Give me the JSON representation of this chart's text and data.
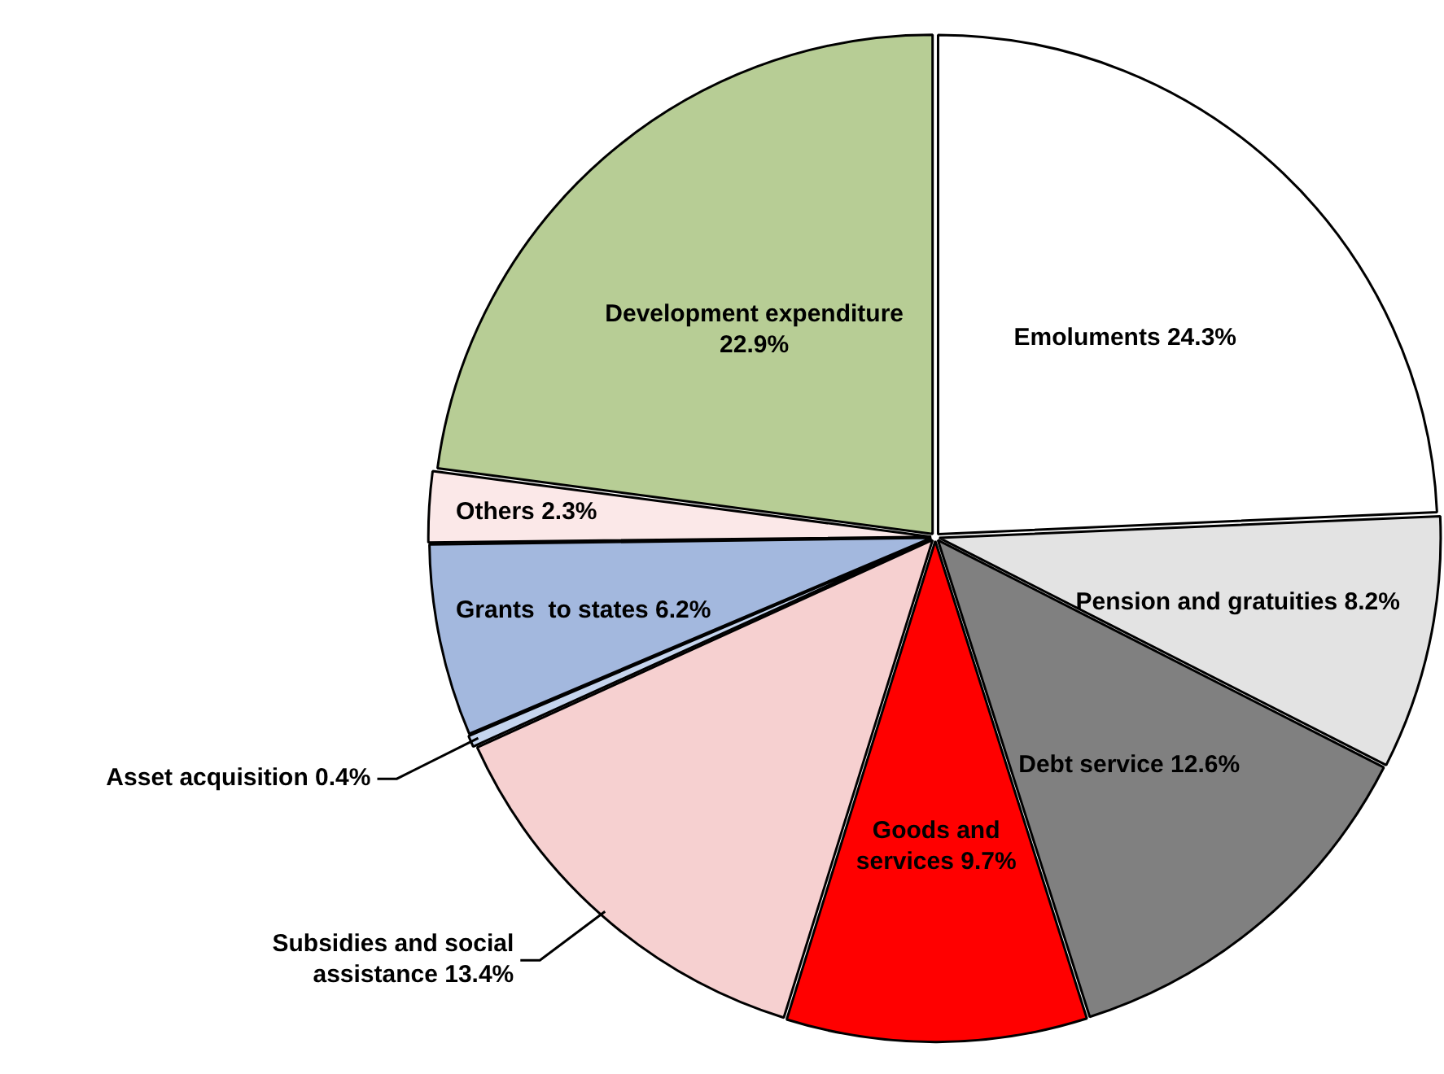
{
  "chart_data": {
    "type": "pie",
    "categories": [
      "Emoluments",
      "Pension and gratuities",
      "Debt service",
      "Goods and services",
      "Subsidies and social assistance",
      "Asset acquisition",
      "Grants  to states",
      "Others",
      "Development expenditure"
    ],
    "values": [
      24.3,
      8.2,
      12.6,
      9.7,
      13.4,
      0.4,
      6.2,
      2.3,
      22.9
    ],
    "value_labels": [
      "24.3%",
      "8.2%",
      "12.6%",
      "9.7%",
      "13.4%",
      "0.4%",
      "6.2%",
      "2.3%",
      "22.9%"
    ],
    "colors": [
      "#ffffff",
      "#e3e3e3",
      "#808080",
      "#ff0000",
      "#f6d0d0",
      "#c5d5ee",
      "#a3b8de",
      "#fbe8e8",
      "#b7cd95"
    ],
    "legend": false
  }
}
